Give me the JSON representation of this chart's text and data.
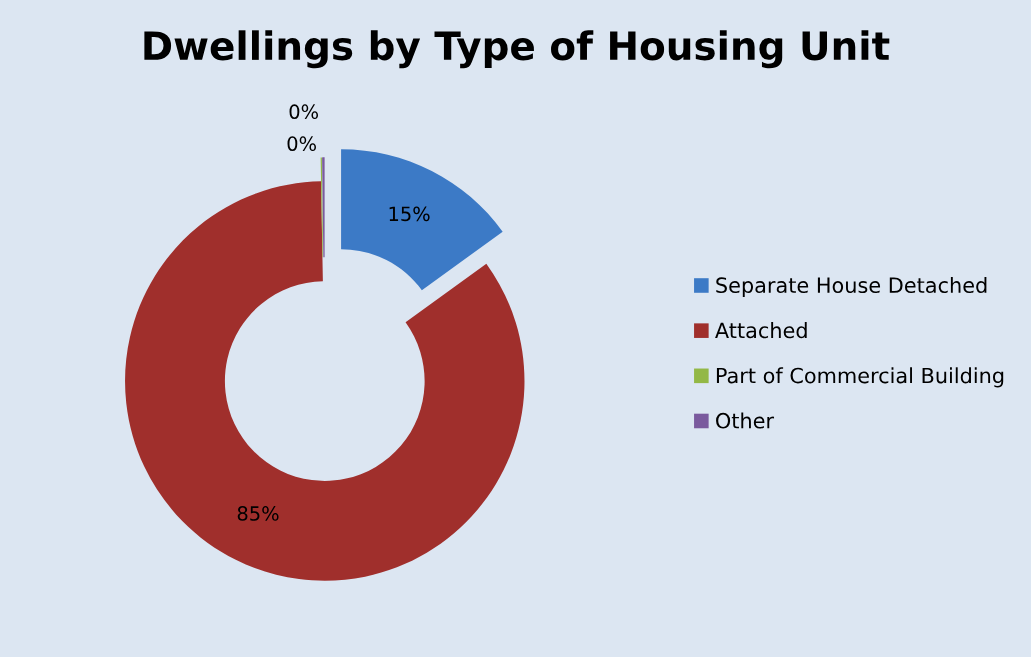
{
  "chart_data": {
    "type": "donut",
    "title": "Dwellings by Type of Housing Unit",
    "categories": [
      "Separate House Detached",
      "Attached",
      "Part of Commercial Building",
      "Other"
    ],
    "values": [
      15,
      84.7,
      0.1,
      0.2
    ],
    "value_labels": [
      "15%",
      "85%",
      "0%",
      "0%"
    ],
    "colors": [
      "#3c7ac6",
      "#a02f2c",
      "#93b846",
      "#7a5a9e"
    ],
    "legend": "right"
  }
}
